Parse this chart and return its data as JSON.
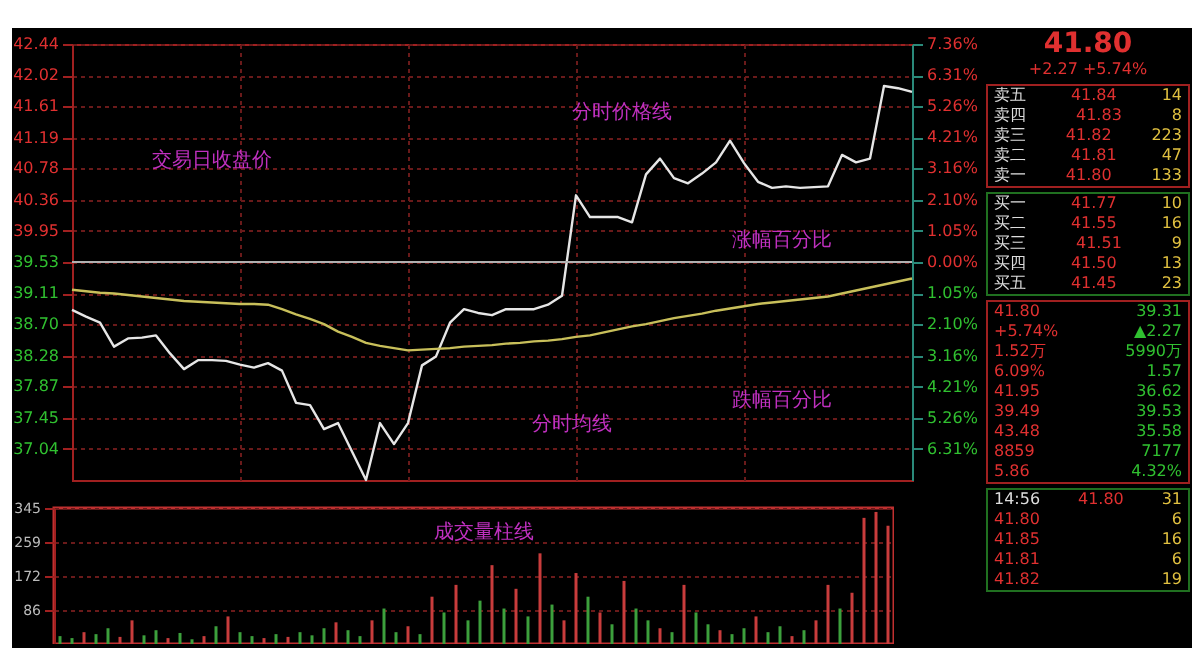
{
  "chart_data": [
    {
      "type": "line",
      "tick_labels": "y",
      "grid": "xy",
      "categories": [
        null,
        null,
        null,
        null,
        null,
        null,
        null,
        null,
        null,
        null,
        null,
        null,
        null,
        null,
        null,
        null,
        null,
        null,
        null,
        null,
        null,
        null,
        null,
        null,
        null,
        null,
        null,
        null,
        null,
        null,
        null,
        null,
        null,
        null,
        null,
        null,
        null,
        null,
        null,
        null,
        null,
        null,
        null,
        null,
        null,
        null,
        null,
        null,
        null,
        null,
        null,
        null,
        null,
        null,
        null,
        null,
        null,
        null,
        null,
        null,
        null
      ],
      "ylim": [
        36.62,
        42.44
      ],
      "yticks": [
        42.44,
        42.02,
        41.61,
        41.19,
        40.78,
        40.36,
        39.95,
        39.53,
        39.11,
        {
          "value": 38.7,
          "label": "38.70"
        },
        38.28,
        37.87,
        37.45,
        37.04
      ],
      "y2lim": [
        -7.36,
        7.36
      ],
      "y2ticks": [
        {
          "value": 7.36,
          "label": "7.36%"
        },
        {
          "value": 6.31,
          "label": "6.31%"
        },
        {
          "value": 5.26,
          "label": "5.26%"
        },
        {
          "value": 4.21,
          "label": "4.21%"
        },
        {
          "value": 3.16,
          "label": "3.16%"
        },
        {
          "value": 2.1,
          "label": "2.10%"
        },
        {
          "value": 1.05,
          "label": "1.05%"
        },
        {
          "value": 0,
          "label": "0.00%"
        },
        {
          "value": -1.05,
          "label": "1.05%"
        },
        {
          "value": -2.1,
          "label": "2.10%"
        },
        {
          "value": -3.16,
          "label": "3.16%"
        },
        {
          "value": -4.21,
          "label": "4.21%"
        },
        {
          "value": -5.26,
          "label": "5.26%"
        },
        {
          "value": -6.31,
          "label": "6.31%"
        }
      ],
      "ref_lines": [
        {
          "axis": "y2",
          "value": 0,
          "color": "#b0b0b0"
        }
      ],
      "series": [
        {
          "color": "#e6e6e6",
          "values": [
            38.89,
            38.8,
            38.72,
            38.4,
            38.51,
            38.52,
            38.55,
            38.31,
            38.1,
            38.22,
            38.22,
            38.21,
            38.16,
            38.12,
            38.18,
            38.08,
            37.65,
            37.62,
            37.3,
            37.38,
            37.0,
            36.62,
            37.38,
            37.1,
            37.38,
            38.15,
            38.27,
            38.72,
            38.9,
            38.85,
            38.82,
            38.9,
            38.9,
            38.9,
            38.96,
            39.08,
            40.42,
            40.13,
            40.13,
            40.13,
            40.06,
            40.7,
            40.91,
            40.65,
            40.58,
            40.71,
            40.86,
            41.15,
            40.85,
            40.6,
            40.52,
            40.54,
            40.52,
            40.53,
            40.54,
            40.96,
            40.86,
            40.91,
            41.88,
            41.85,
            41.8
          ]
        },
        {
          "color": "#c8bf5a",
          "values": [
            39.16,
            39.14,
            39.12,
            39.11,
            39.09,
            39.07,
            39.05,
            39.03,
            39.01,
            39.0,
            38.99,
            38.98,
            38.97,
            38.97,
            38.96,
            38.9,
            38.83,
            38.77,
            38.7,
            38.6,
            38.53,
            38.45,
            38.41,
            38.38,
            38.35,
            38.36,
            38.37,
            38.38,
            38.4,
            38.41,
            38.42,
            38.44,
            38.45,
            38.47,
            38.48,
            38.5,
            38.53,
            38.55,
            38.59,
            38.63,
            38.67,
            38.7,
            38.74,
            38.78,
            38.81,
            38.84,
            38.88,
            38.91,
            38.94,
            38.97,
            38.99,
            39.01,
            39.03,
            39.05,
            39.07,
            39.11,
            39.15,
            39.19,
            39.23,
            39.27,
            39.31
          ]
        }
      ],
      "annotations": [
        "交易日收盘价",
        "分时价格线",
        "涨幅百分比",
        "分时均线",
        "跌幅百分比"
      ]
    },
    {
      "type": "bar",
      "tick_labels": "y",
      "ylim": [
        0,
        345
      ],
      "yticks": [
        86,
        172,
        259,
        345
      ],
      "grid": "y",
      "categories": [
        null,
        null,
        null,
        null,
        null,
        null,
        null,
        null,
        null,
        null,
        null,
        null,
        null,
        null,
        null,
        null,
        null,
        null,
        null,
        null,
        null,
        null,
        null,
        null,
        null,
        null,
        null,
        null,
        null,
        null,
        null,
        null,
        null,
        null,
        null,
        null,
        null,
        null,
        null,
        null,
        null,
        null,
        null,
        null,
        null,
        null,
        null,
        null,
        null,
        null,
        null,
        null,
        null,
        null,
        null,
        null,
        null,
        null,
        null,
        null,
        null,
        null,
        null,
        null,
        null,
        null,
        null,
        null,
        null,
        null
      ],
      "values": [
        20,
        15,
        30,
        25,
        40,
        18,
        60,
        22,
        35,
        15,
        28,
        12,
        20,
        45,
        70,
        30,
        20,
        15,
        25,
        18,
        30,
        22,
        40,
        55,
        35,
        20,
        60,
        90,
        30,
        45,
        25,
        120,
        80,
        150,
        60,
        110,
        200,
        90,
        140,
        70,
        230,
        100,
        60,
        180,
        120,
        80,
        50,
        160,
        90,
        60,
        40,
        30,
        150,
        80,
        50,
        35,
        25,
        40,
        70,
        30,
        45,
        20,
        35,
        60,
        150,
        90,
        130,
        320,
        335,
        300
      ],
      "colors": [
        "#3ca03c",
        "#3ca03c",
        "#c83c3c",
        "#3ca03c",
        "#3ca03c",
        "#c83c3c",
        "#c83c3c",
        "#3ca03c",
        "#3ca03c",
        "#c83c3c",
        "#3ca03c",
        "#3ca03c",
        "#c83c3c",
        "#3ca03c",
        "#c83c3c",
        "#3ca03c",
        "#3ca03c",
        "#c83c3c",
        "#3ca03c",
        "#c83c3c",
        "#3ca03c",
        "#3ca03c",
        "#3ca03c",
        "#c83c3c",
        "#3ca03c",
        "#3ca03c",
        "#c83c3c",
        "#3ca03c",
        "#3ca03c",
        "#c83c3c",
        "#3ca03c",
        "#c83c3c",
        "#3ca03c",
        "#c83c3c",
        "#3ca03c",
        "#3ca03c",
        "#c83c3c",
        "#3ca03c",
        "#c83c3c",
        "#3ca03c",
        "#c83c3c",
        "#3ca03c",
        "#c83c3c",
        "#c83c3c",
        "#3ca03c",
        "#c83c3c",
        "#3ca03c",
        "#c83c3c",
        "#3ca03c",
        "#3ca03c",
        "#c83c3c",
        "#3ca03c",
        "#c83c3c",
        "#3ca03c",
        "#3ca03c",
        "#c83c3c",
        "#3ca03c",
        "#3ca03c",
        "#c83c3c",
        "#3ca03c",
        "#3ca03c",
        "#c83c3c",
        "#3ca03c",
        "#c83c3c",
        "#c83c3c",
        "#3ca03c",
        "#c83c3c",
        "#c83c3c",
        "#c83c3c",
        "#c83c3c"
      ],
      "annotations": [
        "成交量柱线"
      ]
    },
    {
      "type": "other",
      "title": "41.80",
      "subtitle": "+2.27 +5.74%",
      "annotations": [
        "卖五",
        "41.84",
        "14",
        "卖四",
        "41.83",
        "8",
        "卖三",
        "41.82",
        "223",
        "卖二",
        "41.81",
        "47",
        "卖一",
        "41.80",
        "133",
        "买一",
        "41.77",
        "10",
        "买二",
        "41.55",
        "16",
        "买三",
        "41.51",
        "9",
        "买四",
        "41.50",
        "13",
        "买五",
        "41.45",
        "23",
        "41.80",
        "39.31",
        "+5.74%",
        "▲2.27",
        "1.52万",
        "5990万",
        "6.09%",
        "1.57",
        "41.95",
        "36.62",
        "39.49",
        "39.53",
        "43.48",
        "35.58",
        "8859",
        "7177",
        "5.86",
        "4.32%",
        "14:56",
        "41.80",
        "31",
        "41.80",
        "6",
        "41.85",
        "16",
        "41.81",
        "6",
        "41.82",
        "19"
      ]
    }
  ]
}
